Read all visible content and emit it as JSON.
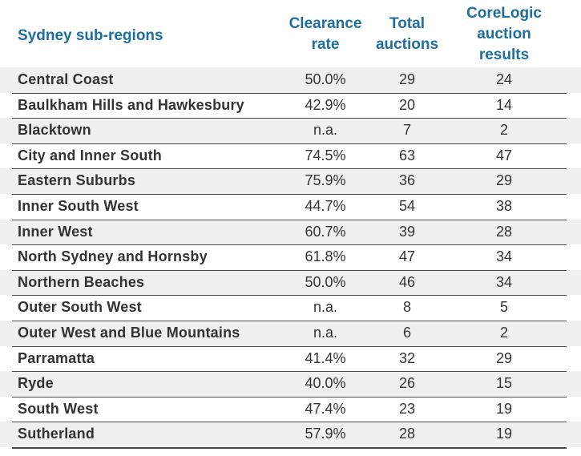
{
  "chart_data": {
    "type": "table",
    "columns": [
      "Sydney sub-regions",
      "Clearance rate",
      "Total auctions",
      "CoreLogic auction results"
    ],
    "headers": {
      "region": "Sydney sub-regions",
      "clearance_line1": "Clearance",
      "clearance_line2": "rate",
      "total_line1": "Total",
      "total_line2": "auctions",
      "corelogic_line1": "CoreLogic",
      "corelogic_line2": "auction",
      "corelogic_line3": "results"
    },
    "rows": [
      {
        "region": "Central Coast",
        "clearance": "50.0%",
        "total": "29",
        "corelogic": "24"
      },
      {
        "region": "Baulkham Hills and Hawkesbury",
        "clearance": "42.9%",
        "total": "20",
        "corelogic": "14"
      },
      {
        "region": "Blacktown",
        "clearance": "n.a.",
        "total": "7",
        "corelogic": "2"
      },
      {
        "region": "City and Inner South",
        "clearance": "74.5%",
        "total": "63",
        "corelogic": "47"
      },
      {
        "region": "Eastern Suburbs",
        "clearance": "75.9%",
        "total": "36",
        "corelogic": "29"
      },
      {
        "region": "Inner South West",
        "clearance": "44.7%",
        "total": "54",
        "corelogic": "38"
      },
      {
        "region": "Inner West",
        "clearance": "60.7%",
        "total": "39",
        "corelogic": "28"
      },
      {
        "region": "North Sydney and Hornsby",
        "clearance": "61.8%",
        "total": "47",
        "corelogic": "34"
      },
      {
        "region": "Northern Beaches",
        "clearance": "50.0%",
        "total": "46",
        "corelogic": "34"
      },
      {
        "region": "Outer South West",
        "clearance": "n.a.",
        "total": "8",
        "corelogic": "5"
      },
      {
        "region": "Outer West and Blue Mountains",
        "clearance": "n.a.",
        "total": "6",
        "corelogic": "2"
      },
      {
        "region": "Parramatta",
        "clearance": "41.4%",
        "total": "32",
        "corelogic": "29"
      },
      {
        "region": "Ryde",
        "clearance": "40.0%",
        "total": "26",
        "corelogic": "15"
      },
      {
        "region": "South West",
        "clearance": "47.4%",
        "total": "23",
        "corelogic": "19"
      },
      {
        "region": "Sutherland",
        "clearance": "57.9%",
        "total": "28",
        "corelogic": "19"
      }
    ]
  },
  "colors": {
    "header_text": "#1e6fa0",
    "row_shade": "#f0f0f0",
    "body_text": "#333333"
  }
}
